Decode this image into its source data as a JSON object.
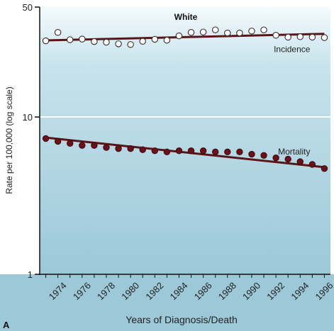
{
  "panel_label": "A",
  "chart_data": {
    "type": "line",
    "title": "White",
    "xlabel": "Years of Diagnosis/Death",
    "ylabel": "Rate per 100,000 (log scale)",
    "yscale": "log",
    "ylim": [
      1,
      50
    ],
    "xlim": [
      1972.5,
      1996.5
    ],
    "yticks": [
      "1",
      "10",
      "50"
    ],
    "xticks": [
      "1974",
      "1976",
      "1978",
      "1980",
      "1982",
      "1984",
      "1986",
      "1988",
      "1990",
      "1992",
      "1994",
      "1996"
    ],
    "grid": false,
    "colors": {
      "panel_top": "#f4fbfd",
      "panel_bottom": "#9cc8d8",
      "trend_line": "#5a1518",
      "mortality_marker": "#6b0f18",
      "incidence_marker": "#ffffff"
    },
    "series": [
      {
        "name": "Incidence",
        "marker": "open-circle",
        "x": [
          1973,
          1974,
          1975,
          1976,
          1977,
          1978,
          1979,
          1980,
          1981,
          1982,
          1983,
          1984,
          1985,
          1986,
          1987,
          1988,
          1989,
          1990,
          1991,
          1992,
          1993,
          1994,
          1995,
          1996
        ],
        "y": [
          30.5,
          34.5,
          31.0,
          31.3,
          30.2,
          29.9,
          29.2,
          28.9,
          30.3,
          31.2,
          30.8,
          32.8,
          34.5,
          34.7,
          35.8,
          34.2,
          34.2,
          35.2,
          35.8,
          33.1,
          32.2,
          32.4,
          32.2,
          32.0
        ],
        "trend": [
          30.7,
          33.8
        ]
      },
      {
        "name": "Mortality",
        "marker": "filled-circle",
        "x": [
          1973,
          1974,
          1975,
          1976,
          1977,
          1978,
          1979,
          1980,
          1981,
          1982,
          1983,
          1984,
          1985,
          1986,
          1987,
          1988,
          1989,
          1990,
          1991,
          1992,
          1993,
          1994,
          1995,
          1996
        ],
        "y": [
          7.3,
          7.0,
          6.8,
          6.6,
          6.6,
          6.4,
          6.3,
          6.3,
          6.2,
          6.1,
          6.0,
          6.1,
          6.1,
          6.1,
          6.0,
          6.0,
          6.0,
          5.8,
          5.7,
          5.5,
          5.4,
          5.2,
          5.0,
          4.7
        ],
        "trend": [
          7.4,
          4.8
        ]
      }
    ]
  }
}
